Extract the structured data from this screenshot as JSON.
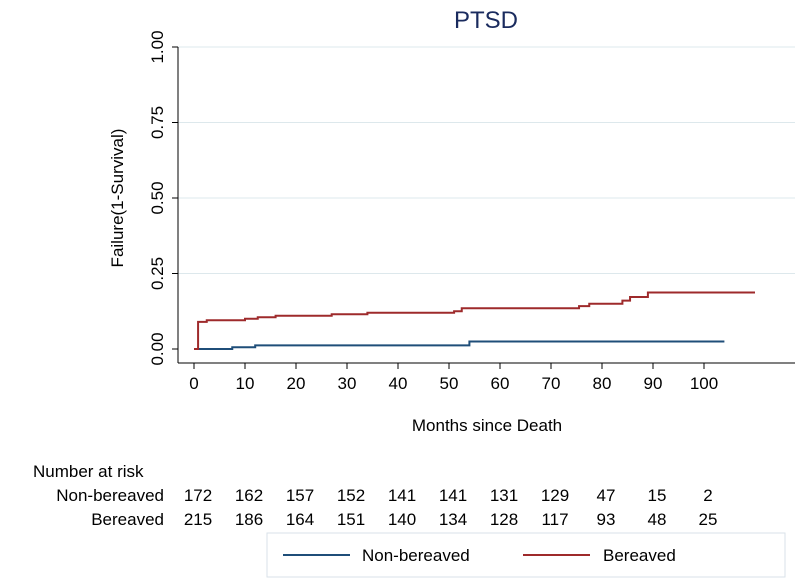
{
  "chart_data": {
    "type": "line",
    "title": "PTSD",
    "xlabel": "Months since Death",
    "ylabel": "Failure(1-Survival)",
    "xlim": [
      0,
      115
    ],
    "ylim": [
      0,
      1
    ],
    "x_ticks": [
      0,
      10,
      20,
      30,
      40,
      50,
      60,
      70,
      80,
      90,
      100
    ],
    "x_tick_labels": [
      "0",
      "10",
      "20",
      "30",
      "40",
      "50",
      "60",
      "70",
      "80",
      "90",
      "100"
    ],
    "y_ticks": [
      0,
      0.25,
      0.5,
      0.75,
      1.0
    ],
    "y_tick_labels": [
      "0.00",
      "0.25",
      "0.50",
      "0.75",
      "1.00"
    ],
    "grid": true,
    "series": [
      {
        "name": "Non-bereaved",
        "color": "#1f4e79",
        "step": true,
        "points": [
          [
            0,
            0.0
          ],
          [
            7.5,
            0.006
          ],
          [
            12,
            0.012
          ],
          [
            54,
            0.025
          ],
          [
            104,
            0.025
          ]
        ]
      },
      {
        "name": "Bereaved",
        "color": "#9e2a2b",
        "step": true,
        "points": [
          [
            0,
            0.0
          ],
          [
            0.8,
            0.09
          ],
          [
            2.5,
            0.095
          ],
          [
            10,
            0.1
          ],
          [
            12.5,
            0.105
          ],
          [
            16,
            0.11
          ],
          [
            27,
            0.115
          ],
          [
            34,
            0.12
          ],
          [
            51,
            0.125
          ],
          [
            52.5,
            0.135
          ],
          [
            75.5,
            0.142
          ],
          [
            77.5,
            0.15
          ],
          [
            84,
            0.16
          ],
          [
            85.5,
            0.172
          ],
          [
            89,
            0.187
          ],
          [
            110,
            0.187
          ]
        ]
      }
    ],
    "risk_table": {
      "header": "Number at risk",
      "at": [
        0,
        10,
        20,
        30,
        40,
        50,
        60,
        70,
        80,
        90,
        100
      ],
      "rows": [
        {
          "label": "Non-bereaved",
          "values": [
            "172",
            "162",
            "157",
            "152",
            "141",
            "141",
            "131",
            "129",
            "47",
            "15",
            "2"
          ]
        },
        {
          "label": "Bereaved",
          "values": [
            "215",
            "186",
            "164",
            "151",
            "140",
            "134",
            "128",
            "117",
            "93",
            "48",
            "25"
          ]
        }
      ]
    },
    "legend": {
      "position": "bottom",
      "entries": [
        "Non-bereaved",
        "Bereaved"
      ]
    }
  }
}
